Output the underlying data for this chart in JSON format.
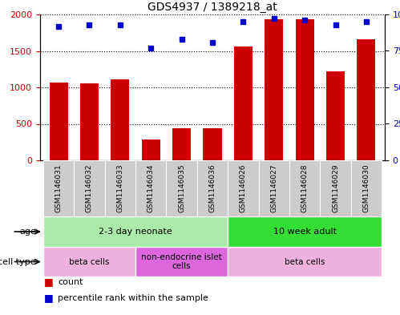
{
  "title": "GDS4937 / 1389218_at",
  "samples": [
    "GSM1146031",
    "GSM1146032",
    "GSM1146033",
    "GSM1146034",
    "GSM1146035",
    "GSM1146036",
    "GSM1146026",
    "GSM1146027",
    "GSM1146028",
    "GSM1146029",
    "GSM1146030"
  ],
  "counts": [
    1065,
    1055,
    1110,
    290,
    445,
    435,
    1555,
    1930,
    1930,
    1225,
    1660
  ],
  "percentiles": [
    92,
    93,
    93,
    77,
    83,
    81,
    95,
    97,
    96,
    93,
    95
  ],
  "bar_color": "#cc0000",
  "dot_color": "#0000cc",
  "ylim_left": [
    0,
    2000
  ],
  "ylim_right": [
    0,
    100
  ],
  "yticks_left": [
    0,
    500,
    1000,
    1500,
    2000
  ],
  "yticks_right": [
    0,
    25,
    50,
    75,
    100
  ],
  "age_groups": [
    {
      "label": "2-3 day neonate",
      "start": 0,
      "end": 6,
      "color": "#aaeaaa"
    },
    {
      "label": "10 week adult",
      "start": 6,
      "end": 11,
      "color": "#33dd33"
    }
  ],
  "cell_type_groups": [
    {
      "label": "beta cells",
      "start": 0,
      "end": 3,
      "color": "#f0b0e0"
    },
    {
      "label": "non-endocrine islet\ncells",
      "start": 3,
      "end": 6,
      "color": "#dd66dd"
    },
    {
      "label": "beta cells",
      "start": 6,
      "end": 11,
      "color": "#f0b0e0"
    }
  ],
  "legend_count_label": "count",
  "legend_pct_label": "percentile rank within the sample",
  "background_color": "#ffffff",
  "tick_label_bg": "#cccccc",
  "tick_label_bg_dark": "#bbbbbb"
}
